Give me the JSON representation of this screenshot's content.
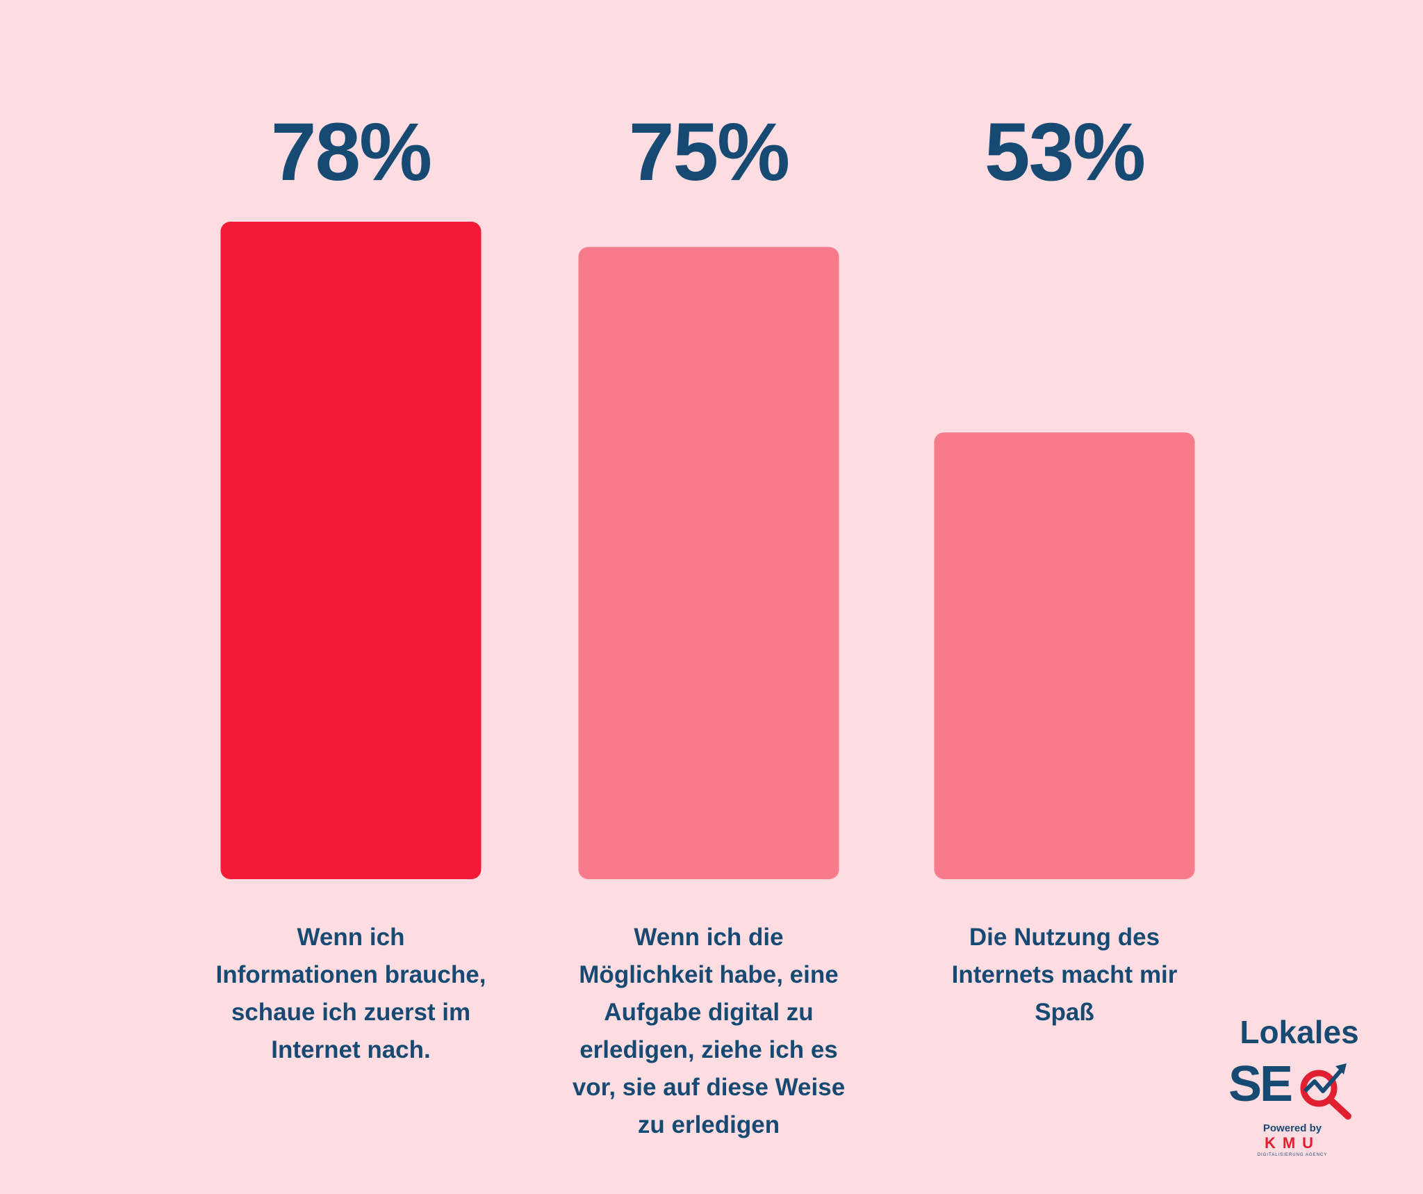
{
  "chart_data": {
    "type": "bar",
    "categories": [
      "Wenn ich Informationen brauche, schaue ich zuerst im Internet nach.",
      "Wenn ich die Möglichkeit habe, eine Aufgabe digital zu erledigen, ziehe ich es vor, sie auf diese Weise zu erledigen",
      "Die Nutzung des Internets macht mir Spaß"
    ],
    "category_lines": [
      [
        "Wenn ich",
        "Informationen brauche,",
        "schaue ich zuerst im",
        "Internet nach."
      ],
      [
        "Wenn ich die",
        "Möglichkeit habe, eine",
        "Aufgabe digital zu",
        "erledigen, ziehe ich es",
        "vor, sie auf diese Weise",
        "zu erledigen"
      ],
      [
        "Die Nutzung des",
        "Internets macht mir",
        "Spaß"
      ]
    ],
    "values": [
      78,
      75,
      53
    ],
    "value_labels": [
      "78%",
      "75%",
      "53%"
    ],
    "unit": "%",
    "ylim": [
      0,
      78
    ],
    "grid": false,
    "legend": "none",
    "colors": [
      "#f21a34",
      "#f77b8a",
      "#f77b8a"
    ],
    "label_color": "#174a72",
    "background": "#fddde2"
  },
  "logo": {
    "line1": "Lokales",
    "line2": "SE",
    "powered": "Powered by",
    "brand": "KMU",
    "tagline": "DIGITALISIERUNG AGENCY",
    "colors": {
      "navy": "#174a72",
      "red": "#e02030"
    }
  }
}
